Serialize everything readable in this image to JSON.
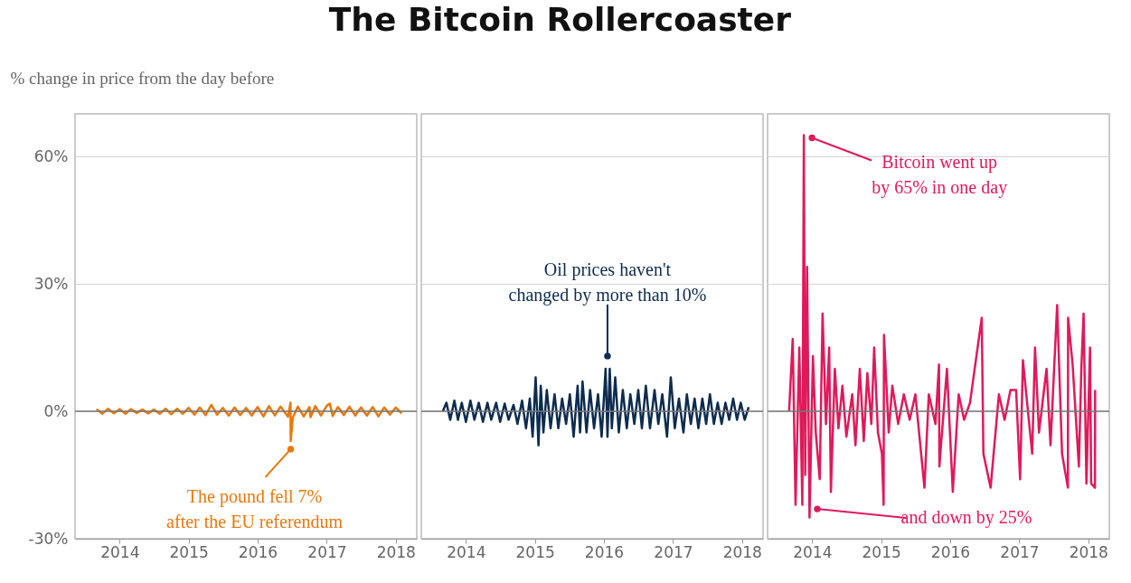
{
  "chart_data": [
    {
      "type": "line",
      "title": "The Bitcoin Rollercoaster",
      "ylabel": "% change in price from the day before",
      "grid": "y",
      "xlim": [
        "2013-05-10",
        "2018-04-22"
      ],
      "xticks": [
        "2014",
        "2015",
        "2016",
        "2017",
        "2018"
      ],
      "ylim": [
        -30,
        70
      ],
      "yticks": [
        {
          "value": -30,
          "label": "-30%"
        },
        {
          "value": 0,
          "label": "0%"
        },
        {
          "value": 30,
          "label": "30%"
        },
        {
          "value": 60,
          "label": "60%"
        }
      ],
      "ref_lines": [
        {
          "axis": "y",
          "value": 0,
          "color": "#777777"
        }
      ],
      "annotations": [
        {
          "text": "The pound fell 7% after the EU referendum",
          "x": "2016-06-24",
          "y": -7
        }
      ],
      "series": [
        {
          "color": "#e8780c",
          "x": [
            "2013-09-01",
            "2013-10-01",
            "2013-11-01",
            "2013-12-01",
            "2014-01-01",
            "2014-02-01",
            "2014-03-01",
            "2014-04-01",
            "2014-05-01",
            "2014-06-01",
            "2014-07-01",
            "2014-08-01",
            "2014-09-01",
            "2014-10-01",
            "2014-11-01",
            "2014-12-01",
            "2015-01-01",
            "2015-02-01",
            "2015-03-01",
            "2015-04-01",
            "2015-05-01",
            "2015-06-01",
            "2015-07-01",
            "2015-08-01",
            "2015-09-01",
            "2015-10-01",
            "2015-11-01",
            "2015-12-01",
            "2016-01-01",
            "2016-02-01",
            "2016-03-01",
            "2016-04-01",
            "2016-05-01",
            "2016-06-10",
            "2016-06-23",
            "2016-06-24",
            "2016-07-05",
            "2016-08-01",
            "2016-09-01",
            "2016-10-01",
            "2016-10-07",
            "2016-11-01",
            "2016-12-01",
            "2017-01-01",
            "2017-01-17",
            "2017-02-01",
            "2017-03-01",
            "2017-04-01",
            "2017-05-01",
            "2017-06-01",
            "2017-07-01",
            "2017-08-01",
            "2017-09-01",
            "2017-10-01",
            "2017-11-01",
            "2017-12-01",
            "2018-01-01",
            "2018-02-01"
          ],
          "values": [
            0.5,
            -0.6,
            0.6,
            -0.5,
            0.5,
            -0.6,
            0.5,
            -0.4,
            0.4,
            -0.5,
            0.4,
            -0.6,
            0.6,
            -0.7,
            0.6,
            -0.6,
            0.8,
            -0.8,
            0.9,
            -0.9,
            1.5,
            -0.8,
            0.8,
            -1,
            0.9,
            -0.9,
            0.8,
            -1,
            1,
            -1.2,
            1.2,
            -1,
            1.1,
            -1.3,
            2,
            -7,
            -1.5,
            1.1,
            -1.2,
            1,
            -1.4,
            1.2,
            -1,
            1.3,
            1.8,
            -1.1,
            1,
            -0.9,
            1.1,
            -1,
            0.9,
            -1,
            1,
            -1.2,
            0.9,
            -0.8,
            0.9,
            -0.5
          ]
        }
      ]
    },
    {
      "type": "line",
      "grid": "y",
      "tick_labels": "x",
      "xlim": [
        "2013-05-10",
        "2018-04-22"
      ],
      "xticks": [
        "2014",
        "2015",
        "2016",
        "2017",
        "2018"
      ],
      "ylim": [
        -30,
        70
      ],
      "yticks": [
        {
          "value": -30,
          "label": null
        },
        {
          "value": 0,
          "label": null
        },
        {
          "value": 30,
          "label": null
        },
        {
          "value": 60,
          "label": null
        }
      ],
      "ref_lines": [
        {
          "axis": "y",
          "value": 0,
          "color": "#777777"
        }
      ],
      "annotations": [
        {
          "text": "Oil prices haven't changed by more than 10%",
          "x": "2016-01-20",
          "y": 13
        }
      ],
      "series": [
        {
          "color": "#0d2c4f",
          "x": [
            "2013-09-01",
            "2013-09-20",
            "2013-10-10",
            "2013-11-01",
            "2013-11-20",
            "2013-12-10",
            "2014-01-01",
            "2014-01-25",
            "2014-02-15",
            "2014-03-10",
            "2014-04-01",
            "2014-04-25",
            "2014-05-15",
            "2014-06-10",
            "2014-07-01",
            "2014-07-25",
            "2014-08-15",
            "2014-09-10",
            "2014-10-01",
            "2014-10-25",
            "2014-11-15",
            "2014-12-05",
            "2014-12-20",
            "2015-01-05",
            "2015-01-20",
            "2015-02-01",
            "2015-02-15",
            "2015-03-05",
            "2015-03-25",
            "2015-04-15",
            "2015-05-05",
            "2015-05-25",
            "2015-06-15",
            "2015-07-05",
            "2015-07-25",
            "2015-08-15",
            "2015-08-28",
            "2015-09-10",
            "2015-10-01",
            "2015-10-20",
            "2015-11-10",
            "2015-12-01",
            "2015-12-20",
            "2016-01-10",
            "2016-01-20",
            "2016-02-01",
            "2016-02-12",
            "2016-03-01",
            "2016-03-20",
            "2016-04-10",
            "2016-05-01",
            "2016-05-20",
            "2016-06-10",
            "2016-07-01",
            "2016-07-20",
            "2016-08-10",
            "2016-09-01",
            "2016-09-25",
            "2016-10-15",
            "2016-11-05",
            "2016-11-30",
            "2016-12-20",
            "2017-01-10",
            "2017-02-01",
            "2017-02-25",
            "2017-03-15",
            "2017-04-05",
            "2017-04-25",
            "2017-05-15",
            "2017-06-05",
            "2017-06-25",
            "2017-07-15",
            "2017-08-05",
            "2017-08-25",
            "2017-09-15",
            "2017-10-05",
            "2017-10-25",
            "2017-11-15",
            "2017-12-05",
            "2017-12-25",
            "2018-01-15",
            "2018-02-05"
          ],
          "values": [
            0,
            2,
            -2,
            2.5,
            -2,
            2,
            -2.5,
            2.5,
            -2,
            2,
            -2.5,
            2,
            -2,
            2,
            -2.5,
            1.8,
            -2,
            1.5,
            -3,
            2.5,
            -4,
            3,
            -6,
            8,
            -8,
            6,
            -5,
            5,
            -4,
            4,
            -4,
            3,
            -3,
            4,
            -6,
            6,
            -5,
            7,
            -5,
            5,
            -4,
            4,
            -6,
            10,
            -6,
            10,
            -4,
            8,
            -5,
            5,
            -4,
            4,
            -3,
            5,
            -4,
            6,
            -4,
            5,
            -3,
            4,
            -6,
            8,
            -4,
            3,
            -5,
            4,
            -3,
            3,
            -4,
            3,
            -3,
            4,
            -3,
            2,
            -3,
            2,
            -2,
            3,
            -2,
            2,
            -2,
            1
          ]
        }
      ]
    },
    {
      "type": "line",
      "grid": "y",
      "tick_labels": "x",
      "xlim": [
        "2013-05-10",
        "2018-04-22"
      ],
      "xticks": [
        "2014",
        "2015",
        "2016",
        "2017",
        "2018"
      ],
      "ylim": [
        -30,
        70
      ],
      "yticks": [
        {
          "value": -30,
          "label": null
        },
        {
          "value": 0,
          "label": null
        },
        {
          "value": 30,
          "label": null
        },
        {
          "value": 60,
          "label": null
        }
      ],
      "ref_lines": [
        {
          "axis": "y",
          "value": 0,
          "color": "#777777"
        }
      ],
      "annotations": [
        {
          "text": "Bitcoin went up by 65% in one day",
          "x": "2013-11-18",
          "y": 65
        },
        {
          "text": "and down by 25%",
          "x": "2014-01-28",
          "y": -23
        }
      ],
      "series": [
        {
          "color": "#e0195a",
          "x": [
            "2013-09-01",
            "2013-09-20",
            "2013-10-05",
            "2013-10-25",
            "2013-11-10",
            "2013-11-18",
            "2013-11-25",
            "2013-12-05",
            "2013-12-18",
            "2014-01-05",
            "2014-01-20",
            "2014-02-10",
            "2014-02-25",
            "2014-03-15",
            "2014-04-01",
            "2014-04-10",
            "2014-05-01",
            "2014-05-20",
            "2014-06-10",
            "2014-07-01",
            "2014-08-01",
            "2014-08-18",
            "2014-09-10",
            "2014-10-01",
            "2014-10-20",
            "2014-11-10",
            "2014-11-25",
            "2014-12-15",
            "2015-01-05",
            "2015-01-14",
            "2015-01-16",
            "2015-02-10",
            "2015-03-01",
            "2015-04-01",
            "2015-05-01",
            "2015-06-01",
            "2015-07-01",
            "2015-08-18",
            "2015-09-10",
            "2015-10-15",
            "2015-11-03",
            "2015-11-05",
            "2015-12-15",
            "2016-01-15",
            "2016-02-15",
            "2016-03-15",
            "2016-04-15",
            "2016-06-16",
            "2016-06-25",
            "2016-08-02",
            "2016-09-15",
            "2016-10-15",
            "2016-11-15",
            "2016-12-15",
            "2017-01-05",
            "2017-01-20",
            "2017-03-10",
            "2017-03-25",
            "2017-04-15",
            "2017-05-25",
            "2017-06-15",
            "2017-07-20",
            "2017-08-15",
            "2017-09-15",
            "2017-09-16",
            "2017-10-10",
            "2017-11-12",
            "2017-11-25",
            "2017-12-07",
            "2017-12-22",
            "2018-01-10",
            "2018-01-16",
            "2018-02-05",
            "2018-02-06"
          ],
          "values": [
            0,
            17,
            -22,
            15,
            -22,
            65,
            -15,
            34,
            -25,
            13,
            -5,
            -16,
            23,
            -3,
            15,
            -19,
            10,
            -4,
            6,
            -6,
            4,
            -8,
            10,
            -7,
            9,
            -3,
            15,
            -5,
            -10,
            -22,
            18,
            -5,
            6,
            -3,
            4,
            -2,
            4,
            -18,
            4,
            -3,
            11,
            -13,
            10,
            -19,
            4,
            -2,
            2,
            22,
            -10,
            -18,
            4,
            -2,
            5,
            5,
            -16,
            12,
            -10,
            15,
            -5,
            10,
            -8,
            25,
            -10,
            -18,
            22,
            11,
            -13,
            10,
            23,
            -17,
            15,
            -17,
            -18,
            5
          ]
        }
      ]
    }
  ]
}
